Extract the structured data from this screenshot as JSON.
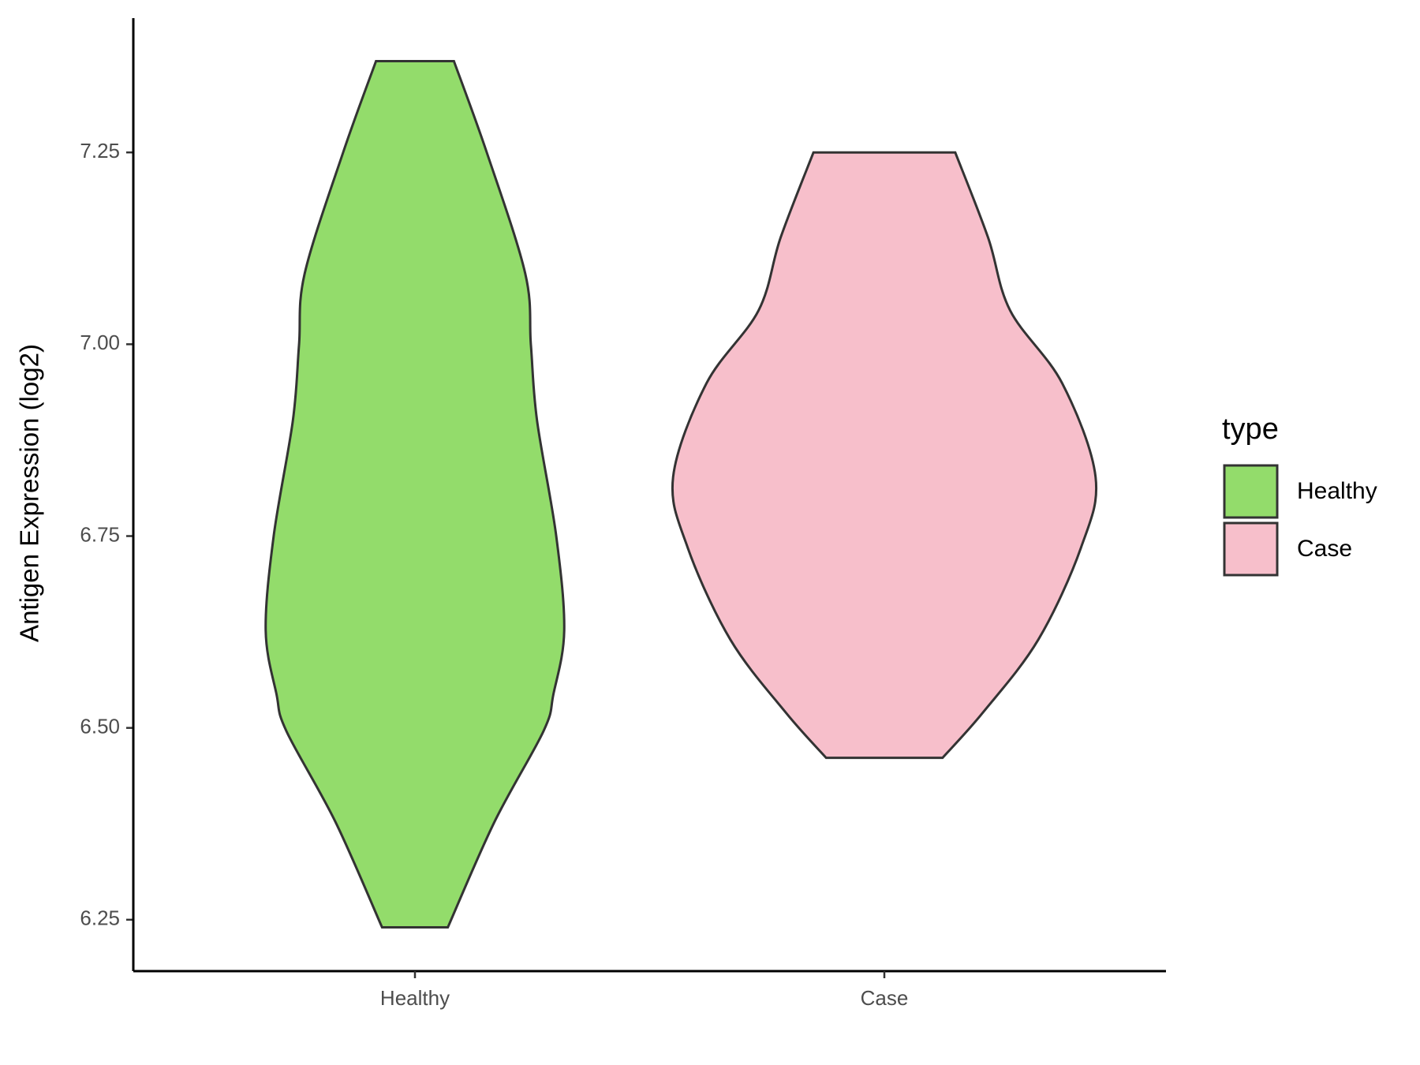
{
  "chart_data": {
    "type": "violin",
    "y_label": "Antigen Expression (log2)",
    "categories": [
      "Healthy",
      "Case"
    ],
    "series": [
      {
        "name": "Healthy",
        "color": "#93dc6b",
        "y": [
          7.369,
          7.25,
          7.092,
          6.999,
          6.901,
          6.75,
          6.627,
          6.544,
          6.496,
          6.377,
          6.24
        ],
        "width": [
          0.083,
          0.153,
          0.235,
          0.247,
          0.26,
          0.301,
          0.318,
          0.295,
          0.274,
          0.169,
          0.07
        ]
      },
      {
        "name": "Case",
        "color": "#f7bfcb",
        "y": [
          7.25,
          7.139,
          7.044,
          6.949,
          6.827,
          6.735,
          6.615,
          6.52,
          6.461
        ],
        "width": [
          0.151,
          0.221,
          0.268,
          0.379,
          0.45,
          0.419,
          0.328,
          0.21,
          0.124
        ]
      }
    ],
    "ylim": [
      6.183,
      7.425
    ],
    "yticks": [
      {
        "value": 6.25,
        "label": "6.25"
      },
      {
        "value": 6.5,
        "label": "6.50"
      },
      {
        "value": 6.75,
        "label": "6.75"
      },
      {
        "value": 7,
        "label": "7.00"
      },
      {
        "value": 7.25,
        "label": "7.25"
      }
    ],
    "legend_title": "type",
    "legend_position": "right"
  }
}
